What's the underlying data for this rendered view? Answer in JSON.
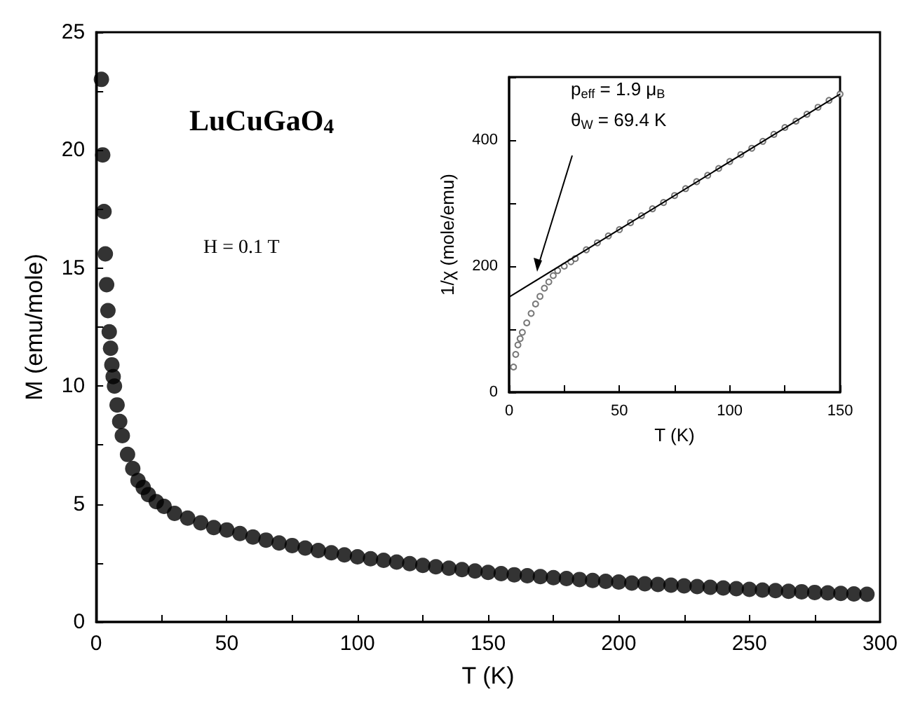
{
  "chart_data": [
    {
      "type": "scatter",
      "title": "LuCuGaO$_{4}$",
      "xlabel": "T (K)",
      "ylabel": "M (emu/mole)",
      "annotations": [
        "H = 0.1 T"
      ],
      "marker": "circle",
      "xlim": [
        0,
        300
      ],
      "xticks": [
        0,
        {
          "value": 25,
          "label": null
        },
        50,
        {
          "value": 75,
          "label": null
        },
        100,
        {
          "value": 125,
          "label": null
        },
        150,
        {
          "value": 175,
          "label": null
        },
        200,
        {
          "value": 225,
          "label": null
        },
        250,
        {
          "value": 275,
          "label": null
        },
        300
      ],
      "ylim": [
        0,
        25
      ],
      "yticks": [
        0,
        {
          "value": 2.5,
          "label": null
        },
        5,
        {
          "value": 7.5,
          "label": null
        },
        10,
        {
          "value": 12.5,
          "label": null
        },
        15,
        {
          "value": 17.5,
          "label": null
        },
        20,
        {
          "value": 22.5,
          "label": null
        },
        25
      ],
      "series": [
        {
          "color": "#000000",
          "x": [
            2,
            2.5,
            3,
            3.5,
            4,
            4.5,
            5,
            5.5,
            6,
            6.5,
            7,
            8,
            9,
            10,
            12,
            14,
            16,
            18,
            20,
            23,
            26,
            30,
            35,
            40,
            45,
            50,
            55,
            60,
            65,
            70,
            75,
            80,
            85,
            90,
            95,
            100,
            105,
            110,
            115,
            120,
            125,
            130,
            135,
            140,
            145,
            150,
            155,
            160,
            165,
            170,
            175,
            180,
            185,
            190,
            195,
            200,
            205,
            210,
            215,
            220,
            225,
            230,
            235,
            240,
            245,
            250,
            255,
            260,
            265,
            270,
            275,
            280,
            285,
            290,
            295
          ],
          "values": [
            23,
            19.8,
            17.4,
            15.6,
            14.3,
            13.2,
            12.3,
            11.6,
            10.9,
            10.4,
            10.0,
            9.2,
            8.5,
            7.9,
            7.1,
            6.5,
            6.0,
            5.7,
            5.4,
            5.1,
            4.9,
            4.6,
            4.4,
            4.2,
            4.0,
            3.9,
            3.75,
            3.6,
            3.47,
            3.35,
            3.24,
            3.13,
            3.03,
            2.93,
            2.84,
            2.76,
            2.68,
            2.61,
            2.54,
            2.47,
            2.4,
            2.34,
            2.28,
            2.22,
            2.16,
            2.1,
            2.05,
            2.0,
            1.96,
            1.92,
            1.88,
            1.84,
            1.8,
            1.76,
            1.72,
            1.69,
            1.65,
            1.62,
            1.59,
            1.56,
            1.53,
            1.5,
            1.47,
            1.44,
            1.41,
            1.38,
            1.35,
            1.33,
            1.3,
            1.28,
            1.25,
            1.23,
            1.21,
            1.19,
            1.17
          ]
        }
      ]
    },
    {
      "type": "scatter",
      "xlabel": "T (K)",
      "ylabel": "1/χ (mole/emu)",
      "annotations": [
        "p$_{eff}$ = 1.9 μ$_{B}$",
        "θ$_{W}$ = 69.4 K"
      ],
      "marker": "circle",
      "xlim": [
        0,
        150
      ],
      "xticks": [
        0,
        {
          "value": 25,
          "label": null
        },
        50,
        {
          "value": 75,
          "label": null
        },
        100,
        {
          "value": 125,
          "label": null
        },
        150
      ],
      "ylim": [
        0,
        500
      ],
      "yticks": [
        0,
        {
          "value": 100,
          "label": null
        },
        200,
        {
          "value": 300,
          "label": null
        },
        400,
        {
          "value": 500,
          "label": null
        }
      ],
      "series": [
        {
          "color": "#555555",
          "x": [
            2,
            3,
            4,
            5,
            6,
            8,
            10,
            12,
            14,
            16,
            18,
            20,
            22,
            25,
            28,
            30,
            35,
            40,
            45,
            50,
            55,
            60,
            65,
            70,
            75,
            80,
            85,
            90,
            95,
            100,
            105,
            110,
            115,
            120,
            125,
            130,
            135,
            140,
            145,
            150
          ],
          "values": [
            40,
            60,
            75,
            85,
            95,
            110,
            125,
            140,
            152,
            165,
            175,
            185,
            193,
            200,
            207,
            212,
            226,
            237,
            248,
            258,
            269,
            280,
            291,
            301,
            312,
            323,
            334,
            344,
            355,
            366,
            377,
            387,
            398,
            409,
            420,
            430,
            441,
            452,
            463,
            473
          ]
        },
        {
          "type": "line",
          "color": "#000000",
          "marker": "none",
          "line_style": "solid",
          "x": [
            0,
            150
          ],
          "values": [
            151,
            473
          ]
        }
      ]
    }
  ]
}
